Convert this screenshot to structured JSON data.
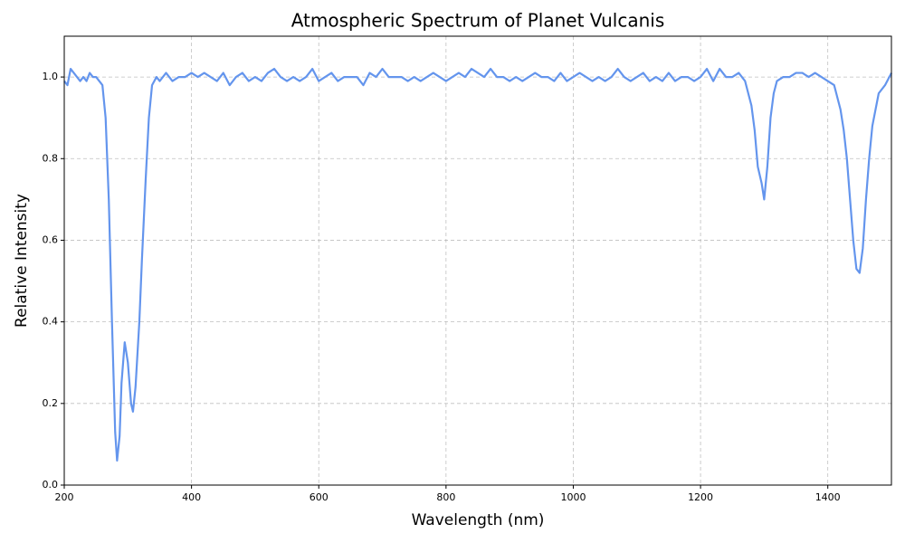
{
  "chart_data": {
    "type": "line",
    "title": "Atmospheric Spectrum of Planet Vulcanis",
    "x_label": "Wavelength (nm)",
    "y_label": "Relative Intensity",
    "color": "#6495ED",
    "grid": true,
    "xlim": [
      200,
      1500
    ],
    "ylim": [
      0,
      1.1
    ],
    "xticks": [
      200,
      400,
      600,
      800,
      1000,
      1200,
      1400
    ],
    "yticks": [
      {
        "value": 0,
        "label": "0.0"
      },
      0.2,
      0.4,
      0.6,
      0.8,
      {
        "value": 1,
        "label": "1.0"
      }
    ],
    "x": [
      200,
      205,
      210,
      215,
      220,
      225,
      230,
      235,
      240,
      245,
      250,
      255,
      260,
      265,
      270,
      275,
      280,
      283,
      287,
      290,
      295,
      300,
      305,
      308,
      312,
      318,
      322,
      328,
      333,
      338,
      345,
      350,
      360,
      370,
      380,
      390,
      400,
      410,
      420,
      430,
      440,
      450,
      460,
      470,
      480,
      490,
      500,
      510,
      520,
      530,
      540,
      550,
      560,
      570,
      580,
      590,
      600,
      610,
      620,
      630,
      640,
      650,
      660,
      670,
      680,
      690,
      700,
      710,
      720,
      730,
      740,
      750,
      760,
      770,
      780,
      790,
      800,
      810,
      820,
      830,
      840,
      850,
      860,
      870,
      880,
      890,
      900,
      910,
      920,
      930,
      940,
      950,
      960,
      970,
      980,
      990,
      1000,
      1010,
      1020,
      1030,
      1040,
      1050,
      1060,
      1070,
      1080,
      1090,
      1100,
      1110,
      1120,
      1130,
      1140,
      1150,
      1160,
      1170,
      1180,
      1190,
      1200,
      1210,
      1220,
      1230,
      1240,
      1250,
      1260,
      1270,
      1280,
      1285,
      1290,
      1296,
      1300,
      1305,
      1310,
      1315,
      1320,
      1330,
      1340,
      1350,
      1360,
      1370,
      1380,
      1390,
      1400,
      1410,
      1420,
      1425,
      1430,
      1435,
      1440,
      1445,
      1450,
      1455,
      1460,
      1465,
      1470,
      1480,
      1490,
      1500
    ],
    "values": [
      0.99,
      0.98,
      1.02,
      1.01,
      1.0,
      0.99,
      1.0,
      0.99,
      1.01,
      1.0,
      1.0,
      0.99,
      0.98,
      0.9,
      0.7,
      0.4,
      0.13,
      0.06,
      0.12,
      0.25,
      0.35,
      0.3,
      0.2,
      0.18,
      0.24,
      0.4,
      0.55,
      0.75,
      0.9,
      0.98,
      1.0,
      0.99,
      1.01,
      0.99,
      1.0,
      1.0,
      1.01,
      1.0,
      1.01,
      1.0,
      0.99,
      1.01,
      0.98,
      1.0,
      1.01,
      0.99,
      1.0,
      0.99,
      1.01,
      1.02,
      1.0,
      0.99,
      1.0,
      0.99,
      1.0,
      1.02,
      0.99,
      1.0,
      1.01,
      0.99,
      1.0,
      1.0,
      1.0,
      0.98,
      1.01,
      1.0,
      1.02,
      1.0,
      1.0,
      1.0,
      0.99,
      1.0,
      0.99,
      1.0,
      1.01,
      1.0,
      0.99,
      1.0,
      1.01,
      1.0,
      1.02,
      1.01,
      1.0,
      1.02,
      1.0,
      1.0,
      0.99,
      1.0,
      0.99,
      1.0,
      1.01,
      1.0,
      1.0,
      0.99,
      1.01,
      0.99,
      1.0,
      1.01,
      1.0,
      0.99,
      1.0,
      0.99,
      1.0,
      1.02,
      1.0,
      0.99,
      1.0,
      1.01,
      0.99,
      1.0,
      0.99,
      1.01,
      0.99,
      1.0,
      1.0,
      0.99,
      1.0,
      1.02,
      0.99,
      1.02,
      1.0,
      1.0,
      1.01,
      0.99,
      0.93,
      0.87,
      0.78,
      0.74,
      0.7,
      0.78,
      0.9,
      0.96,
      0.99,
      1.0,
      1.0,
      1.01,
      1.01,
      1.0,
      1.01,
      1.0,
      0.99,
      0.98,
      0.92,
      0.87,
      0.8,
      0.7,
      0.6,
      0.53,
      0.52,
      0.58,
      0.7,
      0.8,
      0.88,
      0.96,
      0.98,
      1.01
    ]
  }
}
